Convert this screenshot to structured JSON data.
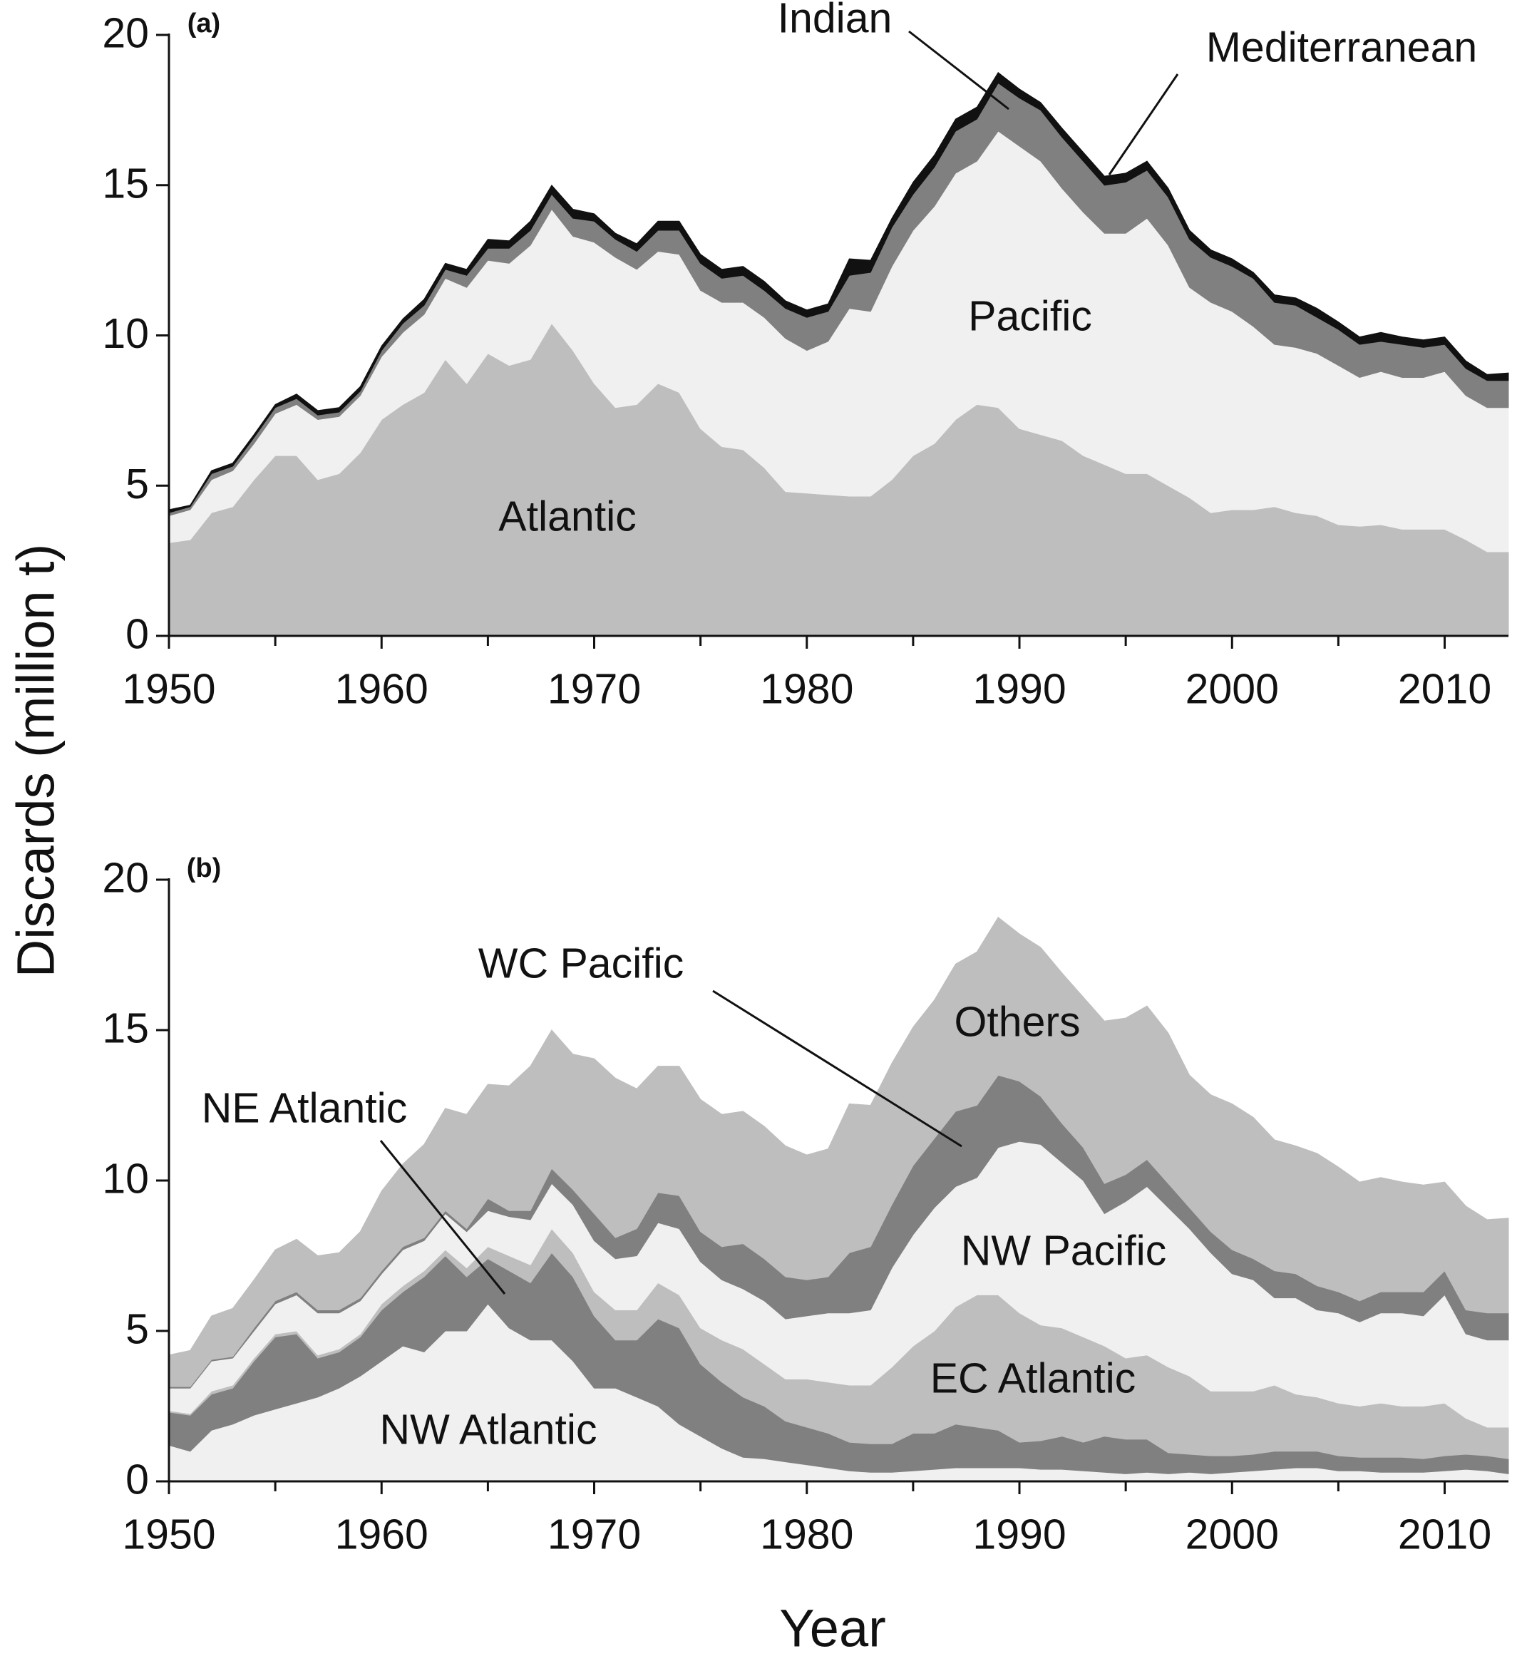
{
  "chart_data": [
    {
      "type": "stacked_area",
      "panel_label": "(a)",
      "y_label": "Discards (million t)",
      "x": [
        1950,
        1951,
        1952,
        1953,
        1954,
        1955,
        1956,
        1957,
        1958,
        1959,
        1960,
        1961,
        1962,
        1963,
        1964,
        1965,
        1966,
        1967,
        1968,
        1969,
        1970,
        1971,
        1972,
        1973,
        1974,
        1975,
        1976,
        1977,
        1978,
        1979,
        1980,
        1981,
        1982,
        1983,
        1984,
        1985,
        1986,
        1987,
        1988,
        1989,
        1990,
        1991,
        1992,
        1993,
        1994,
        1995,
        1996,
        1997,
        1998,
        1999,
        2000,
        2001,
        2002,
        2003,
        2004,
        2005,
        2006,
        2007,
        2008,
        2009,
        2010,
        2011,
        2012,
        2013
      ],
      "xlim": [
        1950,
        2013
      ],
      "xticks": [
        1950,
        1960,
        1970,
        1980,
        1990,
        2000,
        2010
      ],
      "xminor_ticks": [
        1955,
        1965,
        1975,
        1985,
        1995,
        2005
      ],
      "ylim": [
        0,
        20
      ],
      "yticks": [
        0,
        5,
        10,
        15,
        20
      ],
      "series": [
        {
          "name": "Atlantic",
          "color": "#bebebe",
          "values": [
            3.1,
            3.2,
            4.1,
            4.3,
            5.2,
            6.0,
            6.0,
            5.2,
            5.4,
            6.1,
            7.2,
            7.7,
            8.1,
            9.2,
            8.4,
            9.4,
            9.0,
            9.2,
            10.4,
            9.5,
            8.4,
            7.6,
            7.7,
            8.4,
            8.1,
            6.9,
            6.3,
            6.2,
            5.6,
            4.8,
            4.75,
            4.7,
            4.65,
            4.65,
            5.2,
            6.0,
            6.4,
            7.2,
            7.7,
            7.6,
            6.9,
            6.7,
            6.5,
            6.0,
            5.7,
            5.4,
            5.4,
            5.0,
            4.6,
            4.1,
            4.2,
            4.2,
            4.3,
            4.1,
            4.0,
            3.7,
            3.65,
            3.7,
            3.55,
            3.55,
            3.55,
            3.2,
            2.8,
            2.8
          ]
        },
        {
          "name": "Pacific",
          "color": "#f0f0f0",
          "values": [
            0.9,
            1.0,
            1.1,
            1.2,
            1.2,
            1.4,
            1.7,
            2.0,
            1.9,
            1.9,
            2.1,
            2.4,
            2.6,
            2.7,
            3.2,
            3.1,
            3.4,
            3.8,
            3.8,
            3.8,
            4.7,
            5.0,
            4.5,
            4.4,
            4.6,
            4.6,
            4.8,
            4.9,
            5.0,
            5.1,
            4.75,
            5.1,
            6.25,
            6.15,
            7.1,
            7.5,
            7.9,
            8.2,
            8.1,
            9.2,
            9.4,
            9.1,
            8.4,
            8.1,
            7.7,
            8.0,
            8.5,
            8.0,
            7.0,
            7.0,
            6.6,
            6.1,
            5.4,
            5.5,
            5.4,
            5.3,
            4.95,
            5.1,
            5.05,
            5.05,
            5.25,
            4.8,
            4.8,
            4.8
          ]
        },
        {
          "name": "Indian",
          "color": "#808080",
          "values": [
            0.1,
            0.1,
            0.2,
            0.15,
            0.2,
            0.2,
            0.2,
            0.15,
            0.15,
            0.15,
            0.2,
            0.3,
            0.3,
            0.3,
            0.4,
            0.4,
            0.5,
            0.5,
            0.5,
            0.6,
            0.7,
            0.6,
            0.6,
            0.7,
            0.8,
            0.9,
            0.8,
            0.9,
            0.9,
            1.0,
            1.1,
            1.0,
            1.1,
            1.3,
            1.3,
            1.2,
            1.3,
            1.4,
            1.4,
            1.6,
            1.6,
            1.7,
            1.7,
            1.7,
            1.6,
            1.7,
            1.6,
            1.6,
            1.6,
            1.5,
            1.5,
            1.6,
            1.4,
            1.4,
            1.2,
            1.2,
            1.1,
            1.0,
            1.1,
            1.0,
            0.9,
            0.9,
            0.9,
            0.9
          ]
        },
        {
          "name": "Mediterranean",
          "color": "#111111",
          "values": [
            0.1,
            0.05,
            0.1,
            0.1,
            0.1,
            0.1,
            0.15,
            0.15,
            0.15,
            0.15,
            0.15,
            0.15,
            0.2,
            0.2,
            0.2,
            0.3,
            0.25,
            0.3,
            0.3,
            0.3,
            0.25,
            0.2,
            0.25,
            0.3,
            0.3,
            0.3,
            0.3,
            0.3,
            0.3,
            0.25,
            0.25,
            0.25,
            0.55,
            0.4,
            0.3,
            0.4,
            0.4,
            0.4,
            0.4,
            0.35,
            0.3,
            0.25,
            0.3,
            0.3,
            0.3,
            0.3,
            0.3,
            0.3,
            0.3,
            0.25,
            0.25,
            0.2,
            0.25,
            0.25,
            0.3,
            0.25,
            0.25,
            0.3,
            0.25,
            0.25,
            0.25,
            0.25,
            0.2,
            0.25
          ]
        }
      ]
    },
    {
      "type": "stacked_area",
      "panel_label": "(b)",
      "x_label": "Year",
      "x": [
        1950,
        1951,
        1952,
        1953,
        1954,
        1955,
        1956,
        1957,
        1958,
        1959,
        1960,
        1961,
        1962,
        1963,
        1964,
        1965,
        1966,
        1967,
        1968,
        1969,
        1970,
        1971,
        1972,
        1973,
        1974,
        1975,
        1976,
        1977,
        1978,
        1979,
        1980,
        1981,
        1982,
        1983,
        1984,
        1985,
        1986,
        1987,
        1988,
        1989,
        1990,
        1991,
        1992,
        1993,
        1994,
        1995,
        1996,
        1997,
        1998,
        1999,
        2000,
        2001,
        2002,
        2003,
        2004,
        2005,
        2006,
        2007,
        2008,
        2009,
        2010,
        2011,
        2012,
        2013
      ],
      "xlim": [
        1950,
        2013
      ],
      "xticks": [
        1950,
        1960,
        1970,
        1980,
        1990,
        2000,
        2010
      ],
      "xminor_ticks": [
        1955,
        1965,
        1975,
        1985,
        1995,
        2005
      ],
      "ylim": [
        0,
        20
      ],
      "yticks": [
        0,
        5,
        10,
        15,
        20
      ],
      "series": [
        {
          "name": "NW Atlantic",
          "color": "#f0f0f0",
          "values": [
            1.2,
            1.0,
            1.7,
            1.9,
            2.2,
            2.4,
            2.6,
            2.8,
            3.1,
            3.5,
            4.0,
            4.5,
            4.3,
            5.0,
            5.0,
            5.9,
            5.1,
            4.7,
            4.7,
            4.0,
            3.1,
            3.1,
            2.8,
            2.5,
            1.9,
            1.5,
            1.1,
            0.8,
            0.75,
            0.65,
            0.55,
            0.45,
            0.35,
            0.3,
            0.3,
            0.35,
            0.4,
            0.45,
            0.45,
            0.45,
            0.45,
            0.4,
            0.4,
            0.35,
            0.3,
            0.25,
            0.3,
            0.25,
            0.3,
            0.25,
            0.3,
            0.35,
            0.4,
            0.45,
            0.45,
            0.35,
            0.35,
            0.3,
            0.3,
            0.3,
            0.35,
            0.4,
            0.35,
            0.25
          ]
        },
        {
          "name": "NE Atlantic",
          "color": "#808080",
          "values": [
            1.1,
            1.2,
            1.2,
            1.2,
            1.8,
            2.4,
            2.3,
            1.3,
            1.2,
            1.3,
            1.7,
            1.8,
            2.5,
            2.5,
            1.8,
            1.5,
            1.9,
            1.9,
            2.9,
            2.8,
            2.4,
            1.6,
            1.9,
            2.9,
            3.2,
            2.4,
            2.2,
            2.0,
            1.75,
            1.35,
            1.25,
            1.15,
            0.95,
            0.95,
            0.95,
            1.25,
            1.2,
            1.45,
            1.35,
            1.25,
            0.85,
            0.95,
            1.1,
            0.95,
            1.2,
            1.15,
            1.1,
            0.7,
            0.6,
            0.6,
            0.55,
            0.55,
            0.6,
            0.55,
            0.55,
            0.5,
            0.45,
            0.5,
            0.5,
            0.45,
            0.5,
            0.5,
            0.5,
            0.5
          ]
        },
        {
          "name": "EC Atlantic",
          "color": "#bebebe",
          "values": [
            0.05,
            0.05,
            0.1,
            0.1,
            0.1,
            0.1,
            0.1,
            0.1,
            0.1,
            0.1,
            0.2,
            0.2,
            0.2,
            0.2,
            0.3,
            0.4,
            0.5,
            0.6,
            0.8,
            0.8,
            0.8,
            1.0,
            1.0,
            1.2,
            1.1,
            1.2,
            1.4,
            1.6,
            1.4,
            1.4,
            1.6,
            1.7,
            1.9,
            1.95,
            2.55,
            2.9,
            3.4,
            3.9,
            4.4,
            4.5,
            4.3,
            3.85,
            3.6,
            3.5,
            3.0,
            2.7,
            2.8,
            2.85,
            2.6,
            2.15,
            2.15,
            2.1,
            2.2,
            1.9,
            1.8,
            1.75,
            1.7,
            1.8,
            1.7,
            1.75,
            1.75,
            1.2,
            0.95,
            1.05
          ]
        },
        {
          "name": "NW Pacific",
          "color": "#f0f0f0",
          "values": [
            0.75,
            0.85,
            1.0,
            0.9,
            0.9,
            1.0,
            1.2,
            1.4,
            1.2,
            1.1,
            1.0,
            1.2,
            1.0,
            1.2,
            1.2,
            1.2,
            1.3,
            1.5,
            1.5,
            1.6,
            1.7,
            1.7,
            1.8,
            2.0,
            2.2,
            2.2,
            2.0,
            2.0,
            2.1,
            2.0,
            2.1,
            2.3,
            2.4,
            2.5,
            3.3,
            3.7,
            4.1,
            4.0,
            3.9,
            4.9,
            5.7,
            6.0,
            5.5,
            5.2,
            4.4,
            5.2,
            5.6,
            5.3,
            4.9,
            4.6,
            3.9,
            3.7,
            2.9,
            3.2,
            2.9,
            3.0,
            2.8,
            3.0,
            3.1,
            3.0,
            3.6,
            2.8,
            2.9,
            2.9
          ]
        },
        {
          "name": "WC Pacific",
          "color": "#808080",
          "values": [
            0.05,
            0.05,
            0.05,
            0.05,
            0.1,
            0.1,
            0.1,
            0.1,
            0.1,
            0.1,
            0.1,
            0.1,
            0.1,
            0.1,
            0.1,
            0.4,
            0.2,
            0.3,
            0.5,
            0.5,
            0.9,
            0.7,
            0.9,
            1.0,
            1.1,
            1.0,
            1.1,
            1.5,
            1.4,
            1.4,
            1.2,
            1.2,
            2.0,
            2.1,
            2.1,
            2.3,
            2.3,
            2.5,
            2.4,
            2.4,
            2.0,
            1.6,
            1.3,
            1.1,
            1.0,
            0.9,
            0.9,
            0.8,
            0.7,
            0.7,
            0.8,
            0.7,
            0.9,
            0.8,
            0.8,
            0.7,
            0.7,
            0.7,
            0.7,
            0.8,
            0.8,
            0.8,
            0.9,
            0.9
          ]
        },
        {
          "name": "Others",
          "color": "#bebebe",
          "values": [
            1.05,
            1.2,
            1.45,
            1.6,
            1.6,
            1.7,
            1.75,
            1.8,
            1.9,
            2.2,
            2.65,
            2.75,
            3.1,
            3.4,
            3.8,
            3.8,
            4.15,
            4.8,
            4.6,
            4.5,
            5.15,
            5.3,
            4.65,
            4.2,
            4.3,
            4.4,
            4.4,
            4.4,
            4.4,
            4.35,
            4.15,
            4.25,
            4.95,
            4.7,
            4.7,
            4.6,
            4.6,
            4.9,
            5.1,
            5.25,
            4.9,
            4.95,
            5.0,
            5.0,
            5.4,
            5.2,
            5.1,
            5.0,
            4.4,
            4.55,
            4.85,
            4.7,
            4.35,
            4.25,
            4.4,
            4.15,
            3.95,
            3.8,
            3.65,
            3.55,
            2.95,
            3.45,
            3.1,
            3.15
          ]
        }
      ]
    }
  ]
}
